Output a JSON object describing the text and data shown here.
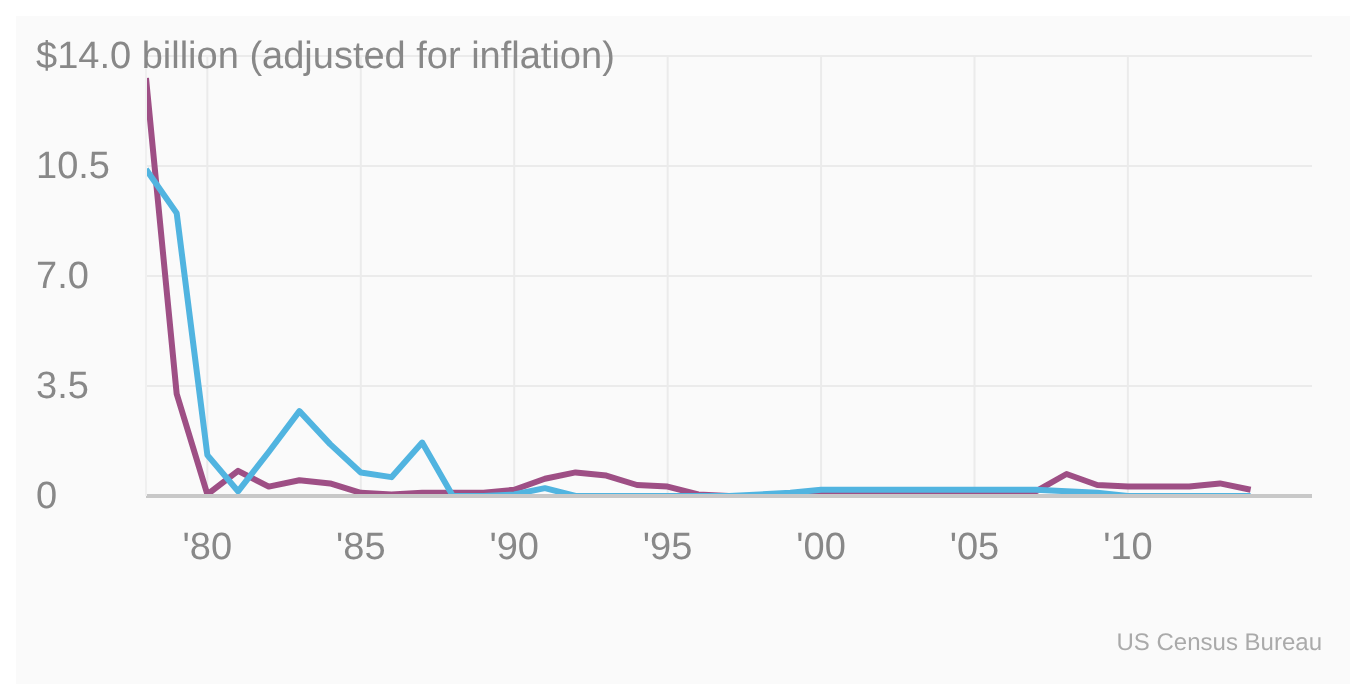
{
  "chart_data": {
    "type": "line",
    "x": [
      1978,
      1979,
      1980,
      1981,
      1982,
      1983,
      1984,
      1985,
      1986,
      1987,
      1988,
      1989,
      1990,
      1991,
      1992,
      1993,
      1994,
      1995,
      1996,
      1997,
      1998,
      1999,
      2000,
      2001,
      2002,
      2003,
      2004,
      2005,
      2006,
      2007,
      2008,
      2009,
      2010,
      2011,
      2012,
      2013,
      2014
    ],
    "series": [
      {
        "color": "#9e4f85",
        "values": [
          13.3,
          3.25,
          0.05,
          0.8,
          0.3,
          0.5,
          0.4,
          0.1,
          0.05,
          0.1,
          0.1,
          0.1,
          0.2,
          0.55,
          0.75,
          0.65,
          0.35,
          0.3,
          0.05,
          0,
          0,
          0,
          0.05,
          0.05,
          0.1,
          0.1,
          0.1,
          0.15,
          0.15,
          0.15,
          0.7,
          0.35,
          0.3,
          0.3,
          0.3,
          0.4,
          0.2
        ]
      },
      {
        "color": "#51b4e0",
        "values": [
          10.4,
          9.0,
          1.3,
          0.15,
          1.4,
          2.7,
          1.65,
          0.75,
          0.6,
          1.7,
          0,
          0,
          0.05,
          0.25,
          0,
          0,
          0,
          0,
          0,
          0,
          0.05,
          0.1,
          0.2,
          0.2,
          0.2,
          0.2,
          0.2,
          0.2,
          0.2,
          0.2,
          0.15,
          0.1,
          0,
          0,
          0,
          0,
          0
        ]
      }
    ],
    "xlim": [
      1978,
      2016
    ],
    "xticks": [
      {
        "value": 1980,
        "label": "'80"
      },
      {
        "value": 1985,
        "label": "'85"
      },
      {
        "value": 1990,
        "label": "'90"
      },
      {
        "value": 1995,
        "label": "'95"
      },
      {
        "value": 2000,
        "label": "'00"
      },
      {
        "value": 2005,
        "label": "'05"
      },
      {
        "value": 2010,
        "label": "'10"
      }
    ],
    "ylim": [
      0,
      14
    ],
    "yticks": [
      0,
      3.5,
      {
        "value": 7,
        "label": "7.0"
      },
      10.5,
      {
        "value": 14,
        "label": "$14.0 billion (adjusted for inflation)"
      }
    ],
    "grid": true,
    "legend": false,
    "marker": "none",
    "line_style": "solid",
    "annotations": [
      "US Census Bureau"
    ]
  }
}
